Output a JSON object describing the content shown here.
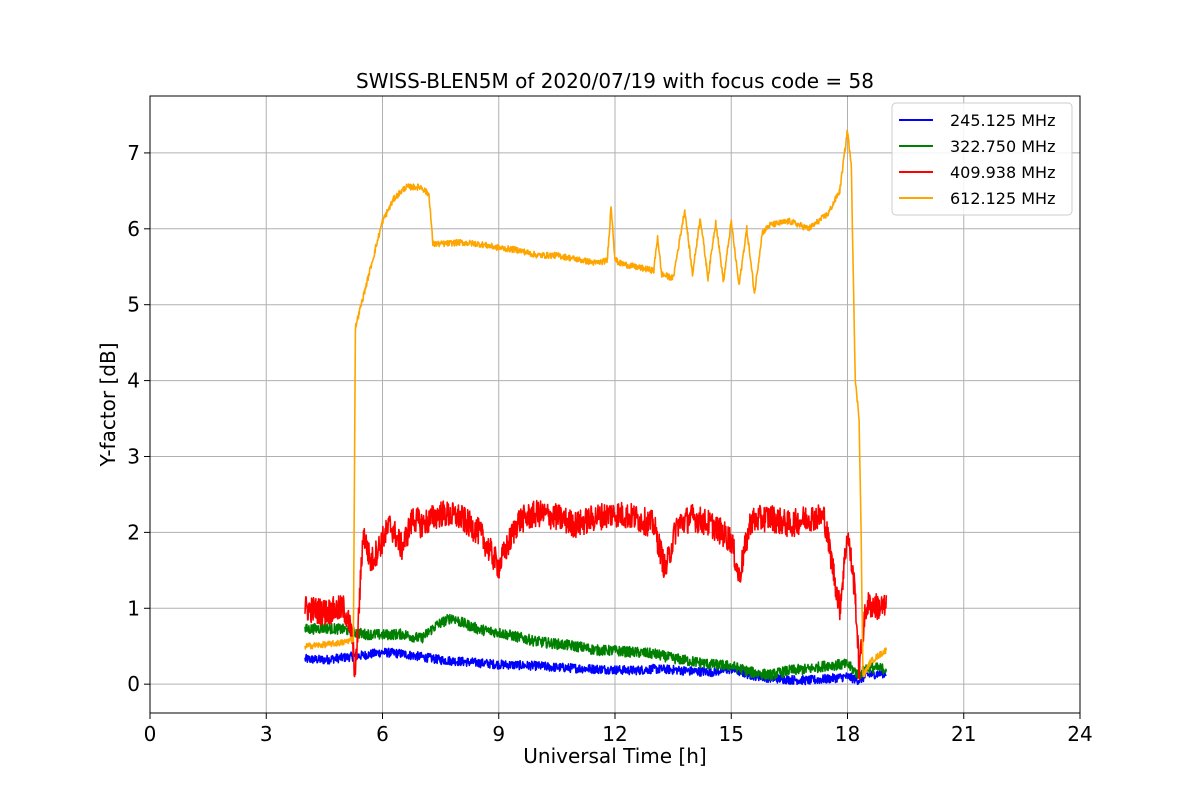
{
  "chart_data": {
    "type": "line",
    "title": "SWISS-BLEN5M of 2020/07/19 with focus code = 58",
    "xlabel": "Universal Time [h]",
    "ylabel": "Y-factor [dB]",
    "xlim": [
      0,
      24
    ],
    "ylim": [
      -0.38,
      7.75
    ],
    "xticks": [
      0,
      3,
      6,
      9,
      12,
      15,
      18,
      21,
      24
    ],
    "yticks": [
      0,
      1,
      2,
      3,
      4,
      5,
      6,
      7
    ],
    "grid": true,
    "legend_position": "top-right",
    "series": [
      {
        "name": "245.125 MHz",
        "color": "#0000ff",
        "noise": 0.06,
        "x": [
          4.0,
          4.5,
          5.0,
          5.5,
          6.0,
          6.5,
          7.0,
          7.5,
          8.0,
          8.5,
          9.0,
          9.5,
          10.0,
          10.5,
          11.0,
          11.5,
          12.0,
          12.5,
          13.0,
          13.5,
          14.0,
          14.5,
          15.0,
          15.5,
          16.0,
          16.5,
          17.0,
          17.5,
          18.0,
          18.3,
          18.5,
          19.0
        ],
        "y": [
          0.33,
          0.32,
          0.35,
          0.38,
          0.42,
          0.4,
          0.36,
          0.32,
          0.3,
          0.28,
          0.26,
          0.25,
          0.24,
          0.22,
          0.21,
          0.2,
          0.19,
          0.18,
          0.2,
          0.19,
          0.17,
          0.16,
          0.2,
          0.12,
          0.08,
          0.06,
          0.05,
          0.07,
          0.1,
          0.05,
          0.12,
          0.15
        ]
      },
      {
        "name": "322.750 MHz",
        "color": "#008000",
        "noise": 0.07,
        "x": [
          4.0,
          4.5,
          5.0,
          5.5,
          6.0,
          6.5,
          7.0,
          7.4,
          7.8,
          8.0,
          8.5,
          9.0,
          9.5,
          10.0,
          10.5,
          11.0,
          11.5,
          12.0,
          12.5,
          13.0,
          13.5,
          14.0,
          14.5,
          15.0,
          15.5,
          16.0,
          16.5,
          17.0,
          17.5,
          18.0,
          18.3,
          18.5,
          19.0
        ],
        "y": [
          0.72,
          0.74,
          0.72,
          0.66,
          0.65,
          0.66,
          0.6,
          0.78,
          0.88,
          0.82,
          0.72,
          0.68,
          0.62,
          0.56,
          0.53,
          0.5,
          0.45,
          0.44,
          0.42,
          0.4,
          0.34,
          0.3,
          0.26,
          0.24,
          0.16,
          0.12,
          0.18,
          0.2,
          0.25,
          0.26,
          0.12,
          0.22,
          0.2
        ]
      },
      {
        "name": "409.938 MHz",
        "color": "#ff0000",
        "noise": 0.18,
        "x": [
          4.0,
          4.5,
          5.0,
          5.2,
          5.3,
          5.5,
          5.7,
          6.0,
          6.2,
          6.5,
          6.8,
          7.0,
          7.5,
          8.0,
          8.5,
          9.0,
          9.5,
          10.0,
          10.5,
          11.0,
          11.5,
          12.0,
          12.5,
          13.0,
          13.3,
          13.6,
          14.0,
          14.5,
          15.0,
          15.2,
          15.5,
          16.0,
          16.5,
          17.0,
          17.4,
          17.8,
          18.0,
          18.2,
          18.3,
          18.4,
          18.5,
          19.0
        ],
        "y": [
          1.0,
          0.95,
          1.0,
          0.7,
          0.1,
          2.0,
          1.6,
          1.9,
          2.1,
          1.8,
          2.2,
          2.1,
          2.25,
          2.2,
          2.0,
          1.55,
          2.15,
          2.25,
          2.2,
          2.1,
          2.2,
          2.25,
          2.2,
          2.1,
          1.5,
          2.1,
          2.2,
          2.1,
          1.9,
          1.4,
          2.15,
          2.2,
          2.1,
          2.2,
          2.2,
          1.0,
          2.0,
          1.2,
          0.15,
          0.7,
          1.05,
          1.0
        ]
      },
      {
        "name": "612.125 MHz",
        "color": "#ffa500",
        "noise": 0.04,
        "x": [
          4.0,
          4.5,
          5.0,
          5.25,
          5.3,
          5.6,
          6.0,
          6.3,
          6.6,
          7.0,
          7.2,
          7.3,
          7.5,
          8.0,
          8.5,
          9.0,
          9.5,
          10.0,
          10.5,
          11.0,
          11.5,
          11.8,
          11.9,
          12.0,
          12.1,
          12.5,
          13.0,
          13.1,
          13.2,
          13.5,
          13.8,
          14.0,
          14.2,
          14.4,
          14.6,
          14.8,
          15.0,
          15.2,
          15.4,
          15.6,
          15.8,
          16.0,
          16.5,
          17.0,
          17.5,
          17.8,
          18.0,
          18.1,
          18.2,
          18.3,
          18.35,
          18.4,
          18.6,
          19.0
        ],
        "y": [
          0.5,
          0.52,
          0.55,
          0.6,
          4.7,
          5.3,
          6.1,
          6.4,
          6.55,
          6.55,
          6.45,
          5.8,
          5.8,
          5.82,
          5.8,
          5.75,
          5.72,
          5.65,
          5.65,
          5.6,
          5.55,
          5.58,
          6.3,
          5.6,
          5.55,
          5.5,
          5.45,
          5.9,
          5.4,
          5.35,
          6.25,
          5.4,
          6.15,
          5.35,
          6.1,
          5.3,
          6.1,
          5.25,
          6.0,
          5.15,
          5.95,
          6.05,
          6.1,
          6.0,
          6.2,
          6.5,
          7.3,
          6.8,
          4.0,
          3.5,
          2.0,
          0.1,
          0.3,
          0.45
        ]
      }
    ]
  }
}
